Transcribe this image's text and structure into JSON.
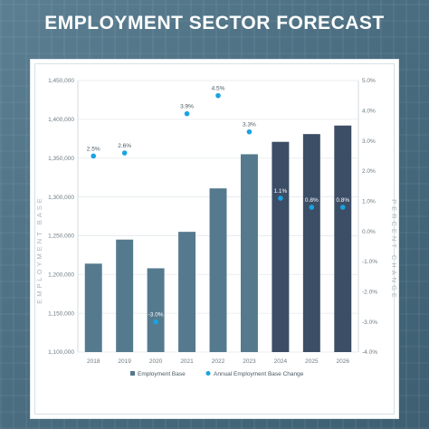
{
  "page": {
    "title": "EMPLOYMENT SECTOR FORECAST"
  },
  "colors": {
    "bar_historic": "#557a8e",
    "bar_forecast": "#3c4d66",
    "dot": "#1aa3e0",
    "grid": "#e4e9ec",
    "frame_bg": "#4f7184"
  },
  "chart_data": {
    "type": "bar",
    "title": "EMPLOYMENT SECTOR FORECAST",
    "categories": [
      "2018",
      "2019",
      "2020",
      "2021",
      "2022",
      "2023",
      "2024",
      "2025",
      "2026"
    ],
    "ylabel": "EMPLOYMENT BASE",
    "y2label": "PERCENT CHANGE",
    "ylim": [
      1100000,
      1450000
    ],
    "y2lim": [
      -4.0,
      5.0
    ],
    "yticks": [
      "1,100,000",
      "1,150,000",
      "1,200,000",
      "1,250,000",
      "1,300,000",
      "1,350,000",
      "1,400,000",
      "1,450,000"
    ],
    "y2ticks": [
      "-4.0%",
      "-3.0%",
      "-2.0%",
      "-1.0%",
      "0.0%",
      "1.0%",
      "2.0%",
      "3.0%",
      "4.0%",
      "5.0%"
    ],
    "grid": true,
    "legend_position": "bottom",
    "forecast_start_index": 6,
    "series": [
      {
        "name": "Employment Base",
        "type": "bar",
        "values": [
          1214000,
          1245000,
          1208000,
          1255000,
          1311000,
          1355000,
          1371000,
          1381000,
          1392000
        ]
      },
      {
        "name": "Annual Employment Base Change",
        "type": "scatter",
        "axis": "right",
        "values": [
          2.5,
          2.6,
          -3.0,
          3.9,
          4.5,
          3.3,
          1.1,
          0.8,
          0.8
        ],
        "labels": [
          "2.5%",
          "2.6%",
          "-3.0%",
          "3.9%",
          "4.5%",
          "3.3%",
          "1.1%",
          "0.8%",
          "0.8%"
        ]
      }
    ]
  }
}
